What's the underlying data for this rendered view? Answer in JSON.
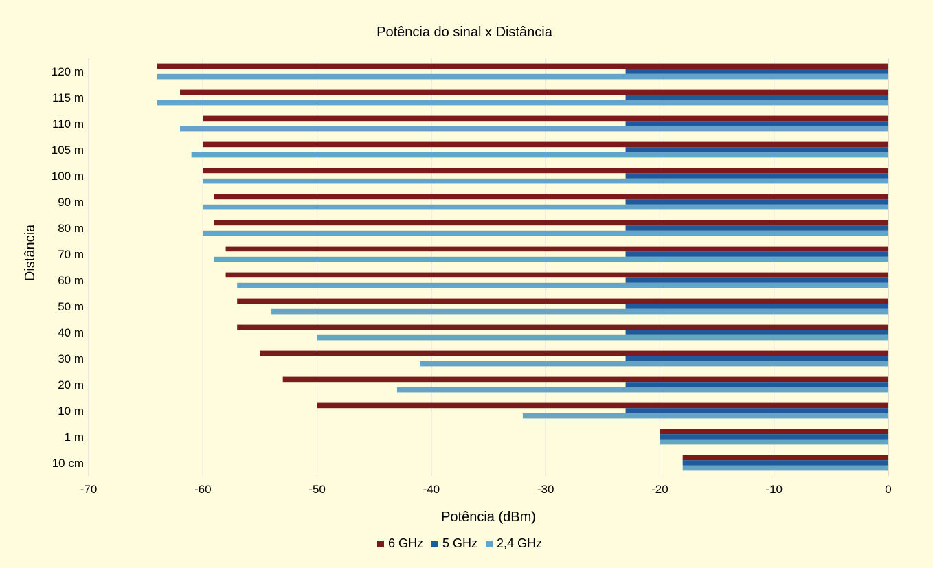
{
  "chart_data": {
    "type": "bar",
    "orientation": "horizontal",
    "title": "Potência do sinal x Distância",
    "xlabel": "Potência (dBm)",
    "ylabel": "Distância",
    "xlim": [
      -70,
      0
    ],
    "x_ticks": [
      -70,
      -60,
      -50,
      -40,
      -30,
      -20,
      -10,
      0
    ],
    "grid": "vertical",
    "legend_position": "bottom",
    "categories": [
      "10 cm",
      "1 m",
      "10 m",
      "20 m",
      "30 m",
      "40 m",
      "50 m",
      "60 m",
      "70 m",
      "80 m",
      "90 m",
      "100 m",
      "105 m",
      "110 m",
      "115 m",
      "120 m"
    ],
    "series": [
      {
        "name": "6 GHz",
        "color": "#7b1a1a",
        "values": [
          -18,
          -20,
          -50,
          -53,
          -55,
          -57,
          -57,
          -58,
          -58,
          -59,
          -59,
          -60,
          -60,
          -60,
          -62,
          -64
        ]
      },
      {
        "name": "5 GHz",
        "color": "#1f5b9c",
        "values": [
          -18,
          -20,
          -23,
          -23,
          -23,
          -23,
          -23,
          -23,
          -23,
          -23,
          -23,
          -23,
          -23,
          -23,
          -23,
          -23
        ]
      },
      {
        "name": "2,4 GHz",
        "color": "#63a4c8",
        "values": [
          -18,
          -20,
          -32,
          -43,
          -41,
          -50,
          -54,
          -57,
          -59,
          -60,
          -60,
          -60,
          -61,
          -62,
          -64,
          -64
        ]
      }
    ]
  }
}
